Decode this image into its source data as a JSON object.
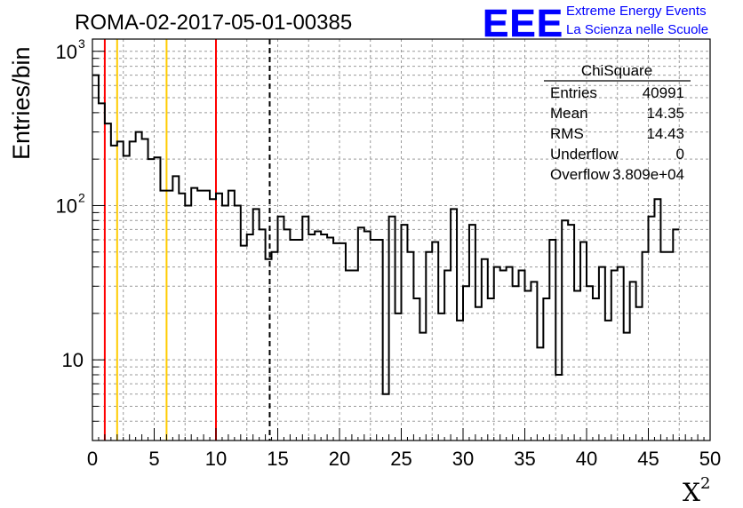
{
  "chart_data": {
    "type": "histogram",
    "title": "ROMA-02-2017-05-01-00385",
    "xlabel": "X",
    "xlabel_superscript": "2",
    "ylabel": "Entries/bin",
    "xlim": [
      0,
      50
    ],
    "ylim": [
      3,
      1200
    ],
    "yscale": "log",
    "grid": true,
    "bin_width": 0.5,
    "x_ticks": [
      "0",
      "5",
      "10",
      "15",
      "20",
      "25",
      "30",
      "35",
      "40",
      "45",
      "50"
    ],
    "y_ticks": [
      {
        "value": 10,
        "label": "10"
      },
      {
        "value": 100,
        "label": "10",
        "exp": "2"
      },
      {
        "value": 1000,
        "label": "10",
        "exp": "3"
      }
    ],
    "values": [
      700,
      460,
      340,
      245,
      260,
      210,
      260,
      300,
      270,
      200,
      205,
      125,
      125,
      155,
      120,
      100,
      130,
      125,
      125,
      110,
      120,
      100,
      125,
      100,
      55,
      65,
      95,
      70,
      45,
      50,
      85,
      70,
      60,
      60,
      85,
      65,
      68,
      65,
      62,
      57,
      57,
      38,
      38,
      72,
      68,
      60,
      60,
      6,
      85,
      20,
      75,
      50,
      25,
      15,
      50,
      58,
      20,
      38,
      95,
      18,
      30,
      75,
      22,
      45,
      25,
      40,
      38,
      40,
      30,
      38,
      28,
      32,
      12,
      25,
      60,
      8,
      80,
      75,
      28,
      58,
      30,
      25,
      40,
      18,
      38,
      40,
      15,
      32,
      22,
      50,
      85,
      110,
      50,
      50,
      70
    ],
    "vlines": [
      {
        "x": 1,
        "color": "#ff0000",
        "style": "solid"
      },
      {
        "x": 2,
        "color": "#ffcc00",
        "style": "solid"
      },
      {
        "x": 6,
        "color": "#ffcc00",
        "style": "solid"
      },
      {
        "x": 10,
        "color": "#ff0000",
        "style": "solid"
      },
      {
        "x": 14.35,
        "color": "#000000",
        "style": "dashed"
      }
    ]
  },
  "stats_box": {
    "title": "ChiSquare",
    "rows": [
      {
        "label": "Entries",
        "value": "40991"
      },
      {
        "label": "Mean",
        "value": "14.35"
      },
      {
        "label": "RMS",
        "value": "14.43"
      },
      {
        "label": "Underflow",
        "value": "0"
      },
      {
        "label": "Overflow",
        "value": "3.809e+04"
      }
    ]
  },
  "logo": {
    "text": "EEE",
    "line1": "Extreme Energy Events",
    "line2": "La Scienza nelle Scuole",
    "color": "#0000ff"
  }
}
